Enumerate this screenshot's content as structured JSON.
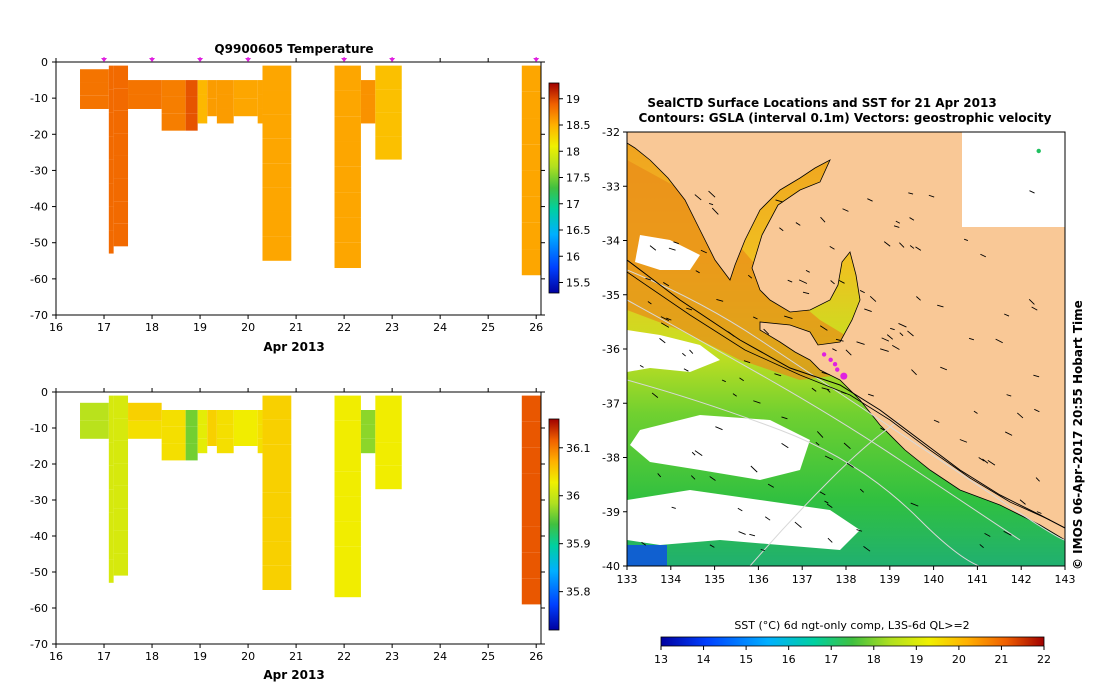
{
  "chart_data": [
    {
      "type": "heatmap",
      "title": "Q9900605  Temperature",
      "xlabel": "Apr 2013",
      "ylabel": "",
      "xlim": [
        16,
        26.1
      ],
      "ylim": [
        -70,
        0
      ],
      "xticks": [
        "16",
        "17",
        "18",
        "19",
        "20",
        "21",
        "22",
        "23",
        "24",
        "25",
        "26"
      ],
      "yticks": [
        "0",
        "-10",
        "-20",
        "-30",
        "-40",
        "-50",
        "-60",
        "-70"
      ],
      "colorbar": {
        "min": 15.3,
        "max": 19.3,
        "ticks": [
          "15.5",
          "16",
          "16.5",
          "17",
          "17.5",
          "18",
          "18.5",
          "19"
        ]
      },
      "profile_markers_x": [
        17.0,
        18.0,
        19.0,
        20.0,
        22.0,
        23.0,
        26.0
      ],
      "profiles": [
        {
          "x0": 16.5,
          "x1": 17.1,
          "zmin": -13,
          "zmax": -2,
          "values": [
            18.8,
            18.8,
            18.8
          ]
        },
        {
          "x0": 17.1,
          "x1": 17.2,
          "zmin": -53,
          "zmax": -1,
          "values": [
            18.85,
            18.85,
            18.85,
            18.85,
            18.85,
            18.85,
            18.85,
            18.85
          ]
        },
        {
          "x0": 17.2,
          "x1": 17.5,
          "zmin": -51,
          "zmax": -1,
          "values": [
            18.85,
            18.85,
            18.85,
            18.85,
            18.85,
            18.85,
            18.85,
            18.85
          ]
        },
        {
          "x0": 17.5,
          "x1": 18.2,
          "zmin": -13,
          "zmax": -5,
          "values": [
            18.8,
            18.8
          ]
        },
        {
          "x0": 18.2,
          "x1": 18.7,
          "zmin": -19,
          "zmax": -5,
          "values": [
            18.75,
            18.75,
            18.75
          ]
        },
        {
          "x0": 18.7,
          "x1": 18.95,
          "zmin": -19,
          "zmax": -5,
          "values": [
            18.95,
            18.95,
            18.95
          ]
        },
        {
          "x0": 18.95,
          "x1": 19.15,
          "zmin": -17,
          "zmax": -5,
          "values": [
            18.45,
            18.45,
            18.45
          ]
        },
        {
          "x0": 19.15,
          "x1": 19.35,
          "zmin": -15,
          "zmax": -5,
          "values": [
            18.6,
            18.6
          ]
        },
        {
          "x0": 19.35,
          "x1": 19.7,
          "zmin": -17,
          "zmax": -5,
          "values": [
            18.6,
            18.6,
            18.6
          ]
        },
        {
          "x0": 19.7,
          "x1": 20.2,
          "zmin": -15,
          "zmax": -5,
          "values": [
            18.55,
            18.55
          ]
        },
        {
          "x0": 20.2,
          "x1": 20.3,
          "zmin": -17,
          "zmax": -5,
          "values": [
            18.55,
            18.55,
            18.55
          ]
        },
        {
          "x0": 20.3,
          "x1": 20.9,
          "zmin": -55,
          "zmax": -1,
          "values": [
            18.55,
            18.55,
            18.55,
            18.55,
            18.55,
            18.55,
            18.55,
            18.55
          ]
        },
        {
          "x0": 21.8,
          "x1": 22.35,
          "zmin": -57,
          "zmax": -1,
          "values": [
            18.55,
            18.55,
            18.55,
            18.55,
            18.55,
            18.55,
            18.55,
            18.55
          ]
        },
        {
          "x0": 22.35,
          "x1": 22.65,
          "zmin": -17,
          "zmax": -5,
          "values": [
            18.65,
            18.65,
            18.65
          ]
        },
        {
          "x0": 22.65,
          "x1": 23.2,
          "zmin": -27,
          "zmax": -1,
          "values": [
            18.4,
            18.4,
            18.4,
            18.4
          ]
        },
        {
          "x0": 25.7,
          "x1": 26.1,
          "zmin": -59,
          "zmax": -1,
          "values": [
            18.55,
            18.55,
            18.55,
            18.55,
            18.55,
            18.55,
            18.55,
            18.55
          ]
        }
      ]
    },
    {
      "type": "heatmap",
      "title": "",
      "xlabel": "Apr 2013",
      "ylabel": "",
      "xlim": [
        16,
        26.1
      ],
      "ylim": [
        -70,
        0
      ],
      "xticks": [
        "16",
        "17",
        "18",
        "19",
        "20",
        "21",
        "22",
        "23",
        "24",
        "25",
        "26"
      ],
      "yticks": [
        "0",
        "-10",
        "-20",
        "-30",
        "-40",
        "-50",
        "-60",
        "-70"
      ],
      "colorbar": {
        "min": 35.72,
        "max": 36.16,
        "ticks": [
          "35.8",
          "35.9",
          "36",
          "36.1"
        ]
      },
      "profiles": [
        {
          "x0": 16.5,
          "x1": 17.1,
          "zmin": -13,
          "zmax": -3,
          "values": [
            35.99,
            35.99
          ]
        },
        {
          "x0": 17.1,
          "x1": 17.2,
          "zmin": -53,
          "zmax": -1,
          "values": [
            36.01,
            36.01,
            36.01,
            36.01,
            36.01,
            36.01,
            36.01,
            36.01
          ]
        },
        {
          "x0": 17.2,
          "x1": 17.5,
          "zmin": -51,
          "zmax": -1,
          "values": [
            36.01,
            36.01,
            36.01,
            36.01,
            36.01,
            36.01,
            36.01,
            36.01
          ]
        },
        {
          "x0": 17.5,
          "x1": 18.2,
          "zmin": -13,
          "zmax": -3,
          "values": [
            36.05,
            36.04
          ]
        },
        {
          "x0": 18.2,
          "x1": 18.7,
          "zmin": -19,
          "zmax": -5,
          "values": [
            36.04,
            36.04,
            36.04
          ]
        },
        {
          "x0": 18.7,
          "x1": 18.95,
          "zmin": -19,
          "zmax": -5,
          "values": [
            35.96,
            35.96,
            35.96
          ]
        },
        {
          "x0": 18.95,
          "x1": 19.15,
          "zmin": -17,
          "zmax": -5,
          "values": [
            36.02,
            36.02,
            36.02
          ]
        },
        {
          "x0": 19.15,
          "x1": 19.35,
          "zmin": -15,
          "zmax": -5,
          "values": [
            36.05,
            36.05
          ]
        },
        {
          "x0": 19.35,
          "x1": 19.7,
          "zmin": -17,
          "zmax": -5,
          "values": [
            36.04,
            36.04,
            36.04
          ]
        },
        {
          "x0": 19.7,
          "x1": 20.2,
          "zmin": -15,
          "zmax": -5,
          "values": [
            36.03,
            36.03
          ]
        },
        {
          "x0": 20.2,
          "x1": 20.3,
          "zmin": -17,
          "zmax": -5,
          "values": [
            36.04,
            36.04,
            36.04
          ]
        },
        {
          "x0": 20.3,
          "x1": 20.9,
          "zmin": -55,
          "zmax": -1,
          "values": [
            36.05,
            36.05,
            36.05,
            36.05,
            36.05,
            36.05,
            36.05,
            36.05
          ]
        },
        {
          "x0": 21.8,
          "x1": 22.35,
          "zmin": -57,
          "zmax": -1,
          "values": [
            36.03,
            36.03,
            36.03,
            36.03,
            36.03,
            36.03,
            36.03,
            36.03
          ]
        },
        {
          "x0": 22.35,
          "x1": 22.65,
          "zmin": -17,
          "zmax": -5,
          "values": [
            35.97,
            35.97,
            35.97
          ]
        },
        {
          "x0": 22.65,
          "x1": 23.2,
          "zmin": -27,
          "zmax": -1,
          "values": [
            36.03,
            36.03,
            36.03,
            36.03
          ]
        },
        {
          "x0": 25.7,
          "x1": 26.1,
          "zmin": -59,
          "zmax": -1,
          "values": [
            36.12,
            36.12,
            36.12,
            36.12,
            36.12,
            36.12,
            36.12,
            36.12
          ]
        }
      ]
    },
    {
      "type": "heatmap",
      "title": "SealCTD Surface Locations and SST for 21 Apr 2013",
      "subtitle": "Contours: GSLA (interval 0.1m) Vectors: geostrophic velocity",
      "xlabel": "",
      "ylabel": "",
      "xlim": [
        133,
        143
      ],
      "ylim": [
        -40,
        -32
      ],
      "xticks": [
        "133",
        "134",
        "135",
        "136",
        "137",
        "138",
        "139",
        "140",
        "141",
        "142",
        "143"
      ],
      "yticks": [
        "-32",
        "-33",
        "-34",
        "-35",
        "-36",
        "-37",
        "-38",
        "-39",
        "-40"
      ],
      "colorbar": {
        "label": "SST (°C) 6d ngt-only comp, L3S-6d QL>=2",
        "min": 13,
        "max": 22,
        "ticks": [
          "13",
          "14",
          "15",
          "16",
          "17",
          "18",
          "19",
          "20",
          "21",
          "22"
        ]
      },
      "credit": "© IMOS 06-Apr-2017 20:55 Hobart Time",
      "seal_locations": [
        {
          "lon": 137.5,
          "lat": -36.1
        },
        {
          "lon": 137.65,
          "lat": -36.2
        },
        {
          "lon": 137.75,
          "lat": -36.28
        },
        {
          "lon": 137.8,
          "lat": -36.38
        },
        {
          "lon": 137.95,
          "lat": -36.5
        },
        {
          "lon": 142.4,
          "lat": -32.35
        }
      ]
    }
  ],
  "colors": {
    "land": "#f9c896",
    "track": "#000000",
    "marker": "#e020e0"
  }
}
